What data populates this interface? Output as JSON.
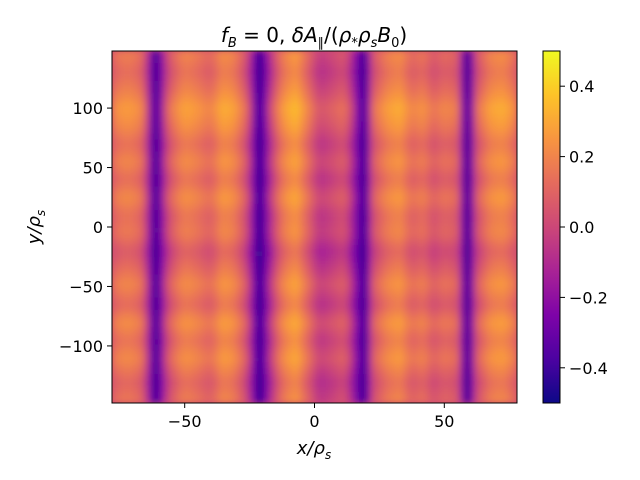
{
  "chart_data": {
    "type": "heatmap",
    "title": "f_B = 0, δA_∥/(ρ_* ρ_s B_0)",
    "title_parts": {
      "f": "f",
      "f_sub": "B",
      "eq": " = 0, ",
      "delta": "δA",
      "par_sub": "∥",
      "open": "/(",
      "rho_star": "ρ",
      "star_sub": "*",
      "rho_s": "ρ",
      "s_sub": "s",
      "B": "B",
      "zero_sub": "0",
      "close": ")"
    },
    "xlabel": "x/ρ_s",
    "ylabel": "y/ρ_s",
    "xlabel_parts": {
      "var": "x/ρ",
      "sub": "s"
    },
    "ylabel_parts": {
      "var": "y/ρ",
      "sub": "s"
    },
    "xlim": [
      -78,
      78
    ],
    "ylim": [
      -148,
      148
    ],
    "xticks": [
      -50,
      0,
      50
    ],
    "xtick_labels": [
      "−50",
      "0",
      "50"
    ],
    "yticks": [
      -100,
      -50,
      0,
      50,
      100
    ],
    "ytick_labels": [
      "−100",
      "−50",
      "0",
      "50",
      "100"
    ],
    "colormap": "plasma",
    "vmin": -0.5,
    "vmax": 0.5,
    "colorbar_ticks": [
      -0.4,
      -0.2,
      0.0,
      0.2,
      0.4
    ],
    "colorbar_tick_labels": [
      "−0.4",
      "−0.2",
      "0.0",
      "0.2",
      "0.4"
    ],
    "grid": false,
    "column_profile": {
      "x": [
        -78,
        -72,
        -66,
        -61,
        -56,
        -50,
        -45,
        -40,
        -35,
        -31,
        -26,
        -21,
        -16,
        -12,
        -7,
        -2,
        2,
        7,
        12,
        16,
        19,
        23,
        28,
        33,
        38,
        42,
        46,
        50,
        55,
        59,
        63,
        68,
        73,
        78
      ],
      "values": [
        0.12,
        0.18,
        0.12,
        -0.42,
        0.05,
        0.2,
        0.16,
        0.1,
        0.22,
        0.19,
        0.04,
        -0.44,
        -0.02,
        0.18,
        0.26,
        0.1,
        -0.05,
        0.0,
        0.06,
        -0.2,
        -0.42,
        0.05,
        0.18,
        0.22,
        0.1,
        0.16,
        0.05,
        0.12,
        0.08,
        -0.42,
        0.05,
        0.2,
        0.22,
        0.12
      ]
    },
    "row_modulation": {
      "y": [
        -148,
        -130,
        -110,
        -95,
        -80,
        -65,
        -48,
        -35,
        -20,
        -5,
        10,
        25,
        40,
        55,
        70,
        85,
        100,
        115,
        130,
        148
      ],
      "values": [
        0.0,
        -0.06,
        0.05,
        -0.02,
        0.06,
        -0.05,
        0.04,
        -0.03,
        -0.1,
        0.0,
        -0.03,
        0.05,
        -0.04,
        0.04,
        -0.03,
        0.05,
        0.1,
        0.02,
        -0.04,
        0.02
      ]
    }
  }
}
